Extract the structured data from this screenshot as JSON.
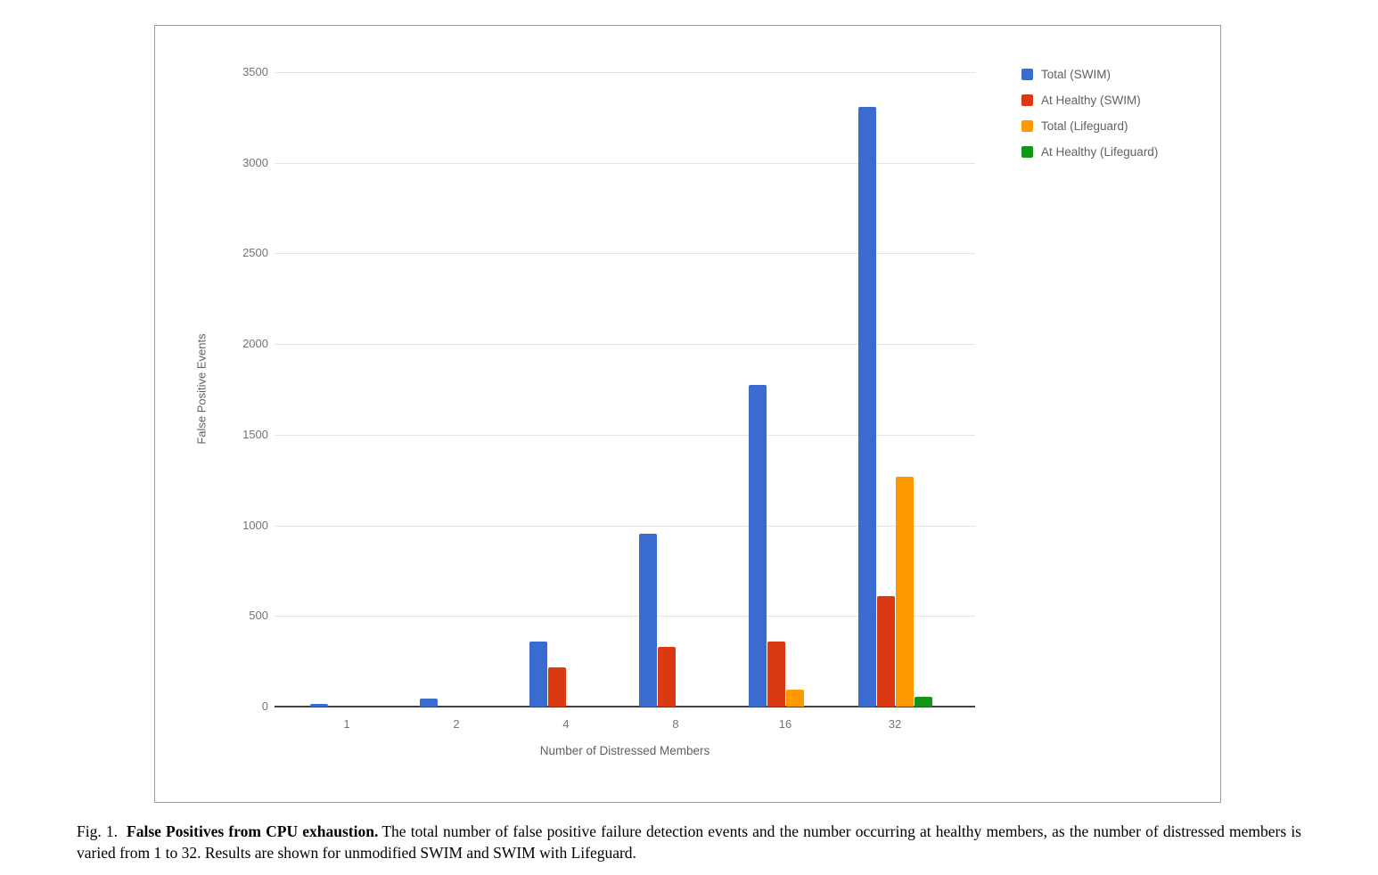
{
  "figure": {
    "caption": {
      "prefix": "Fig. 1.",
      "bold": "False Positives from CPU exhaustion.",
      "text": "The total number of false positive failure detection events and the number occurring at healthy members, as the number of distressed members is varied from 1 to 32. Results are shown for unmodified SWIM and SWIM with Lifeguard."
    }
  },
  "chart_data": {
    "type": "bar",
    "title": "",
    "xlabel": "Number of Distressed Members",
    "ylabel": "False Positive Events",
    "categories": [
      "1",
      "2",
      "4",
      "8",
      "16",
      "32"
    ],
    "series": [
      {
        "name": "Total (SWIM)",
        "color": "#3a6bd0",
        "values": [
          15,
          45,
          360,
          955,
          1775,
          3310
        ]
      },
      {
        "name": "At Healthy (SWIM)",
        "color": "#db3912",
        "values": [
          0,
          0,
          215,
          330,
          360,
          610
        ]
      },
      {
        "name": "Total (Lifeguard)",
        "color": "#ff9900",
        "values": [
          0,
          0,
          0,
          0,
          95,
          1270
        ]
      },
      {
        "name": "At Healthy (Lifeguard)",
        "color": "#109618",
        "values": [
          0,
          0,
          0,
          0,
          0,
          55
        ]
      }
    ],
    "ylim": [
      0,
      3500
    ],
    "ytick_step": 500,
    "grid": true,
    "legend_position": "right",
    "axis_text_color": "#757575",
    "axis_title_color": "#616161"
  }
}
